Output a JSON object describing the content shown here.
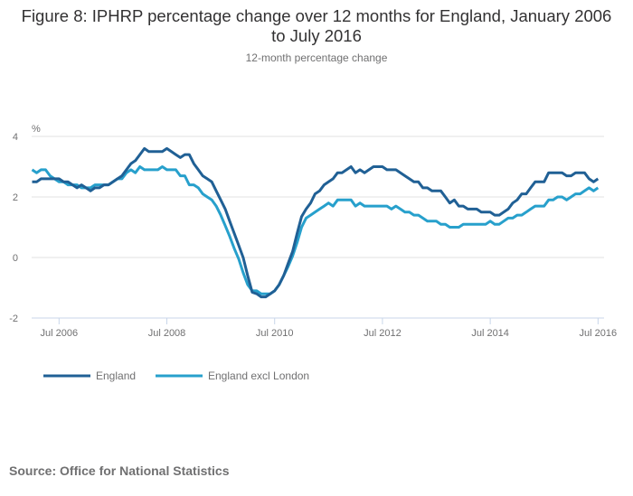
{
  "title": "Figure 8: IPHRP percentage change over 12 months for England, January 2006 to July 2016",
  "subtitle": "12-month percentage change",
  "source": "Source: Office for National Statistics",
  "chart_data": {
    "type": "line",
    "title": "Figure 8: IPHRP percentage change over 12 months for England, January 2006 to July 2016",
    "subtitle": "12-month percentage change",
    "ylabel": "%",
    "xlabel": "",
    "x_range": [
      "2006-01",
      "2016-07"
    ],
    "x_frequency": "monthly",
    "ylim": [
      -2,
      4
    ],
    "y_ticks": [
      "4",
      "2",
      "0",
      "-2"
    ],
    "x_ticks": [
      "Jul 2006",
      "Jul 2008",
      "Jul 2010",
      "Jul 2012",
      "Jul 2014",
      "Jul 2016"
    ],
    "grid": "horizontal",
    "legend": "bottom-left",
    "series": [
      {
        "name": "England",
        "color": "#206095",
        "values": [
          2.5,
          2.5,
          2.6,
          2.6,
          2.6,
          2.6,
          2.6,
          2.5,
          2.5,
          2.4,
          2.3,
          2.4,
          2.3,
          2.2,
          2.3,
          2.3,
          2.4,
          2.4,
          2.5,
          2.6,
          2.7,
          2.9,
          3.1,
          3.2,
          3.4,
          3.6,
          3.5,
          3.5,
          3.5,
          3.5,
          3.6,
          3.5,
          3.4,
          3.3,
          3.4,
          3.4,
          3.1,
          2.9,
          2.7,
          2.6,
          2.5,
          2.2,
          1.9,
          1.6,
          1.2,
          0.8,
          0.4,
          0.0,
          -0.6,
          -1.15,
          -1.2,
          -1.3,
          -1.3,
          -1.2,
          -1.1,
          -0.9,
          -0.6,
          -0.2,
          0.2,
          0.8,
          1.35,
          1.6,
          1.8,
          2.1,
          2.2,
          2.4,
          2.5,
          2.6,
          2.8,
          2.8,
          2.9,
          3.0,
          2.8,
          2.9,
          2.8,
          2.9,
          3.0,
          3.0,
          3.0,
          2.9,
          2.9,
          2.9,
          2.8,
          2.7,
          2.6,
          2.5,
          2.5,
          2.3,
          2.3,
          2.2,
          2.2,
          2.2,
          2.0,
          1.8,
          1.9,
          1.7,
          1.7,
          1.6,
          1.6,
          1.6,
          1.5,
          1.5,
          1.5,
          1.4,
          1.4,
          1.5,
          1.6,
          1.8,
          1.9,
          2.1,
          2.1,
          2.3,
          2.5,
          2.5,
          2.5,
          2.8,
          2.8,
          2.8,
          2.8,
          2.7,
          2.7,
          2.8,
          2.8,
          2.8,
          2.6,
          2.5,
          2.6
        ]
      },
      {
        "name": "England excl London",
        "color": "#27a0cc",
        "values": [
          2.9,
          2.8,
          2.9,
          2.9,
          2.7,
          2.6,
          2.5,
          2.5,
          2.4,
          2.4,
          2.4,
          2.3,
          2.3,
          2.3,
          2.4,
          2.4,
          2.4,
          2.4,
          2.5,
          2.6,
          2.6,
          2.8,
          2.9,
          2.8,
          3.0,
          2.9,
          2.9,
          2.9,
          2.9,
          3.0,
          2.9,
          2.9,
          2.9,
          2.7,
          2.7,
          2.4,
          2.4,
          2.3,
          2.1,
          2.0,
          1.9,
          1.7,
          1.4,
          1.05,
          0.7,
          0.3,
          -0.05,
          -0.5,
          -0.9,
          -1.1,
          -1.1,
          -1.2,
          -1.2,
          -1.2,
          -1.1,
          -0.9,
          -0.6,
          -0.3,
          0.05,
          0.5,
          1.0,
          1.3,
          1.4,
          1.5,
          1.6,
          1.7,
          1.8,
          1.7,
          1.9,
          1.9,
          1.9,
          1.9,
          1.7,
          1.8,
          1.7,
          1.7,
          1.7,
          1.7,
          1.7,
          1.7,
          1.6,
          1.7,
          1.6,
          1.5,
          1.5,
          1.4,
          1.4,
          1.3,
          1.2,
          1.2,
          1.2,
          1.1,
          1.1,
          1.0,
          1.0,
          1.0,
          1.1,
          1.1,
          1.1,
          1.1,
          1.1,
          1.1,
          1.2,
          1.1,
          1.1,
          1.2,
          1.3,
          1.3,
          1.4,
          1.4,
          1.5,
          1.6,
          1.7,
          1.7,
          1.7,
          1.9,
          1.9,
          2.0,
          2.0,
          1.9,
          2.0,
          2.1,
          2.1,
          2.2,
          2.3,
          2.2,
          2.3
        ]
      }
    ]
  }
}
